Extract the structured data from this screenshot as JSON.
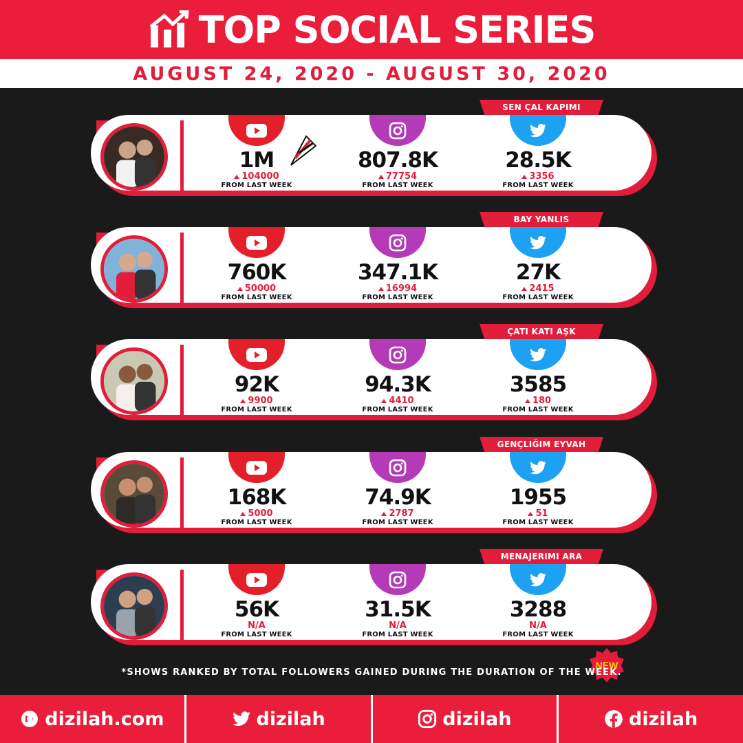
{
  "header": {
    "title": "TOP SOCIAL SERIES",
    "dates": "AUGUST 24, 2020 - AUGUST 30, 2020"
  },
  "colors": {
    "accent": "#e11d3a",
    "youtube": "#e41f2a",
    "instagram": "#b43ab8",
    "twitter": "#1da1f2",
    "background": "#1a1a1a"
  },
  "shows": [
    {
      "name": "SEN ÇAL KAPIMI",
      "youtube": {
        "value": "1M",
        "change": "104000",
        "label": "FROM LAST WEEK"
      },
      "instagram": {
        "value": "807.8K",
        "change": "77754",
        "label": "FROM LAST WEEK"
      },
      "twitter": {
        "value": "28.5K",
        "change": "3356",
        "label": "FROM LAST WEEK"
      }
    },
    {
      "name": "BAY YANLIS",
      "youtube": {
        "value": "760K",
        "change": "50000",
        "label": "FROM LAST WEEK"
      },
      "instagram": {
        "value": "347.1K",
        "change": "16994",
        "label": "FROM LAST WEEK"
      },
      "twitter": {
        "value": "27K",
        "change": "2415",
        "label": "FROM LAST WEEK"
      }
    },
    {
      "name": "ÇATI KATI AŞK",
      "youtube": {
        "value": "92K",
        "change": "9900",
        "label": "FROM LAST WEEK"
      },
      "instagram": {
        "value": "94.3K",
        "change": "4410",
        "label": "FROM LAST WEEK"
      },
      "twitter": {
        "value": "3585",
        "change": "180",
        "label": "FROM LAST WEEK"
      }
    },
    {
      "name": "GENÇLIĞIM EYVAH",
      "youtube": {
        "value": "168K",
        "change": "5000",
        "label": "FROM LAST WEEK"
      },
      "instagram": {
        "value": "74.9K",
        "change": "2787",
        "label": "FROM LAST WEEK"
      },
      "twitter": {
        "value": "1955",
        "change": "51",
        "label": "FROM LAST WEEK"
      }
    },
    {
      "name": "MENAJERIMI ARA",
      "youtube": {
        "value": "56K",
        "change": "N/A",
        "label": "FROM LAST WEEK"
      },
      "instagram": {
        "value": "31.5K",
        "change": "N/A",
        "label": "FROM LAST WEEK"
      },
      "twitter": {
        "value": "3288",
        "change": "N/A",
        "label": "FROM LAST WEEK"
      },
      "badge": "NEW"
    }
  ],
  "footnote": "*SHOWS RANKED BY TOTAL FOLLOWERS GAINED DURING THE DURATION OF THE WEEK.",
  "footer": {
    "website": "dizilah.com",
    "twitter": "dizilah",
    "instagram": "dizilah",
    "facebook": "dizilah"
  }
}
